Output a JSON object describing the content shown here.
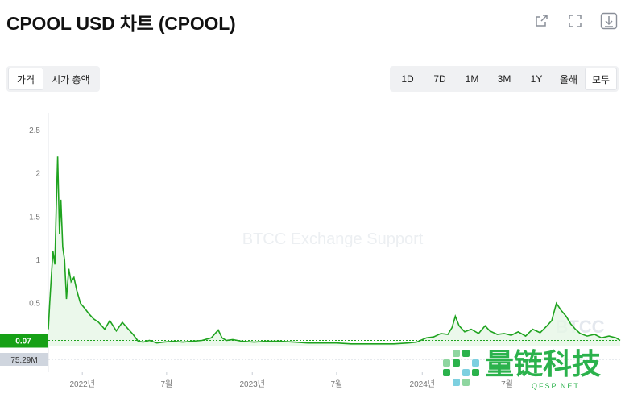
{
  "header": {
    "title": "CPOOL USD 차트 (CPOOL)",
    "icons": [
      "share-icon",
      "fullscreen-icon",
      "download-icon"
    ]
  },
  "metric_tabs": [
    {
      "label": "가격",
      "active": true
    },
    {
      "label": "시가 총액",
      "active": false
    }
  ],
  "range_tabs": [
    {
      "label": "1D",
      "active": false
    },
    {
      "label": "7D",
      "active": false
    },
    {
      "label": "1M",
      "active": false
    },
    {
      "label": "3M",
      "active": false
    },
    {
      "label": "1Y",
      "active": false
    },
    {
      "label": "올해",
      "active": false
    },
    {
      "label": "모두",
      "active": true
    }
  ],
  "watermark": "BTCC Exchange Support",
  "watermark_brand": "BTCC",
  "logo": {
    "cn_text": "量链科技",
    "sub_text": "QFSP.NET"
  },
  "colors": {
    "line": "#1fa31f",
    "fill": "#e6f6e6",
    "price_badge": "#16a016",
    "volume_badge": "#cfd5de",
    "logo_green": "#2bb24c"
  },
  "chart_data": {
    "type": "area",
    "ylim": [
      0,
      2.8
    ],
    "yticks": [
      "0.5",
      "1",
      "1.5",
      "2",
      "2.5"
    ],
    "ytick_values": [
      0.5,
      1,
      1.5,
      2,
      2.5
    ],
    "xticks": [
      "2022년",
      "7월",
      "2023년",
      "7월",
      "2024년",
      "7월"
    ],
    "xtick_dates": [
      "2022-01-01",
      "2022-07-01",
      "2023-01-01",
      "2023-07-01",
      "2024-01-01",
      "2024-07-01"
    ],
    "xrange": [
      "2021-10-20",
      "2025-03-01"
    ],
    "current_price_label": "0.07",
    "current_price": 0.07,
    "volume_label": "75.29M",
    "series": [
      {
        "x": [
          "2021-10-20",
          "2021-10-23",
          "2021-10-27",
          "2021-10-30",
          "2021-11-03",
          "2021-11-06",
          "2021-11-09",
          "2021-11-13",
          "2021-11-16",
          "2021-11-20",
          "2021-11-24",
          "2021-11-28",
          "2021-12-03",
          "2021-12-08",
          "2021-12-14",
          "2021-12-20",
          "2021-12-28",
          "2022-01-05",
          "2022-01-15",
          "2022-01-25",
          "2022-02-05",
          "2022-02-18",
          "2022-03-01",
          "2022-03-15",
          "2022-03-28",
          "2022-04-10",
          "2022-04-20",
          "2022-05-01",
          "2022-05-12",
          "2022-05-25",
          "2022-06-10",
          "2022-06-25",
          "2022-07-15",
          "2022-08-05",
          "2022-08-25",
          "2022-09-15",
          "2022-10-05",
          "2022-10-20",
          "2022-10-28",
          "2022-11-06",
          "2022-11-20",
          "2022-12-10",
          "2023-01-05",
          "2023-02-01",
          "2023-03-01",
          "2023-04-01",
          "2023-05-01",
          "2023-06-01",
          "2023-07-01",
          "2023-08-01",
          "2023-09-01",
          "2023-10-01",
          "2023-11-01",
          "2023-12-01",
          "2023-12-20",
          "2024-01-10",
          "2024-01-25",
          "2024-02-10",
          "2024-02-25",
          "2024-03-05",
          "2024-03-12",
          "2024-03-20",
          "2024-04-01",
          "2024-04-15",
          "2024-05-01",
          "2024-05-15",
          "2024-05-25",
          "2024-06-10",
          "2024-06-25",
          "2024-07-10",
          "2024-07-25",
          "2024-08-10",
          "2024-08-25",
          "2024-09-10",
          "2024-09-25",
          "2024-10-05",
          "2024-10-15",
          "2024-10-25",
          "2024-11-05",
          "2024-11-15",
          "2024-11-25",
          "2024-12-05",
          "2024-12-20",
          "2025-01-05",
          "2025-01-20",
          "2025-02-05",
          "2025-02-20",
          "2025-03-01"
        ],
        "values": [
          0.2,
          0.5,
          0.85,
          1.1,
          0.95,
          1.6,
          2.2,
          1.3,
          1.7,
          1.15,
          1.0,
          0.55,
          0.9,
          0.75,
          0.8,
          0.65,
          0.5,
          0.45,
          0.38,
          0.32,
          0.28,
          0.2,
          0.3,
          0.18,
          0.28,
          0.2,
          0.14,
          0.06,
          0.05,
          0.07,
          0.04,
          0.05,
          0.06,
          0.05,
          0.06,
          0.07,
          0.1,
          0.19,
          0.1,
          0.07,
          0.08,
          0.06,
          0.05,
          0.06,
          0.06,
          0.05,
          0.04,
          0.04,
          0.04,
          0.03,
          0.03,
          0.03,
          0.03,
          0.04,
          0.05,
          0.1,
          0.11,
          0.15,
          0.14,
          0.22,
          0.35,
          0.24,
          0.17,
          0.2,
          0.15,
          0.24,
          0.18,
          0.14,
          0.15,
          0.13,
          0.17,
          0.12,
          0.2,
          0.16,
          0.24,
          0.3,
          0.5,
          0.42,
          0.35,
          0.26,
          0.2,
          0.15,
          0.12,
          0.14,
          0.1,
          0.12,
          0.1,
          0.07
        ]
      }
    ]
  }
}
